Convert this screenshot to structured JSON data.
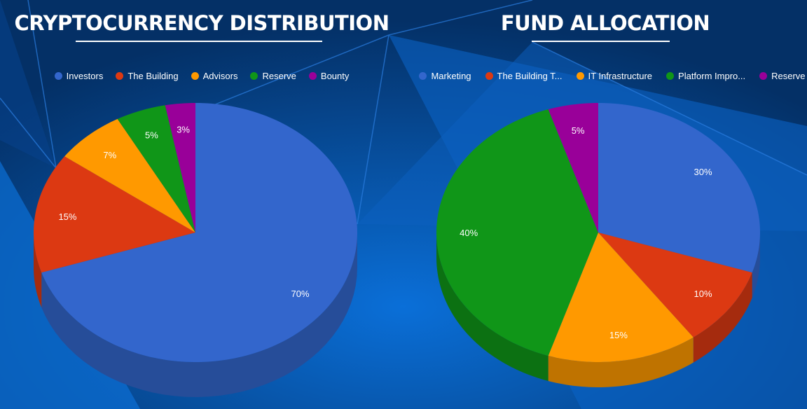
{
  "chart_data": [
    {
      "type": "pie",
      "variant": "3d",
      "title": "CRYPTOCURRENCY DISTRIBUTION",
      "legend_position": "top",
      "categories": [
        "Investors",
        "The Building",
        "Advisors",
        "Reserve",
        "Bounty"
      ],
      "values": [
        70,
        15,
        7,
        5,
        3
      ],
      "labels": [
        "70%",
        "15%",
        "7%",
        "5%",
        "3%"
      ],
      "colors": [
        "#3366cc",
        "#dc3912",
        "#ff9900",
        "#109618",
        "#990099"
      ]
    },
    {
      "type": "pie",
      "variant": "3d",
      "title": "FUND ALLOCATION",
      "legend_position": "top",
      "categories": [
        "Marketing",
        "The Building T...",
        "IT Infrastructure",
        "Platform Impro...",
        "Reserve"
      ],
      "values": [
        30,
        10,
        15,
        40,
        5
      ],
      "labels": [
        "30%",
        "10%",
        "15%",
        "40%",
        "5%"
      ],
      "colors": [
        "#3366cc",
        "#dc3912",
        "#ff9900",
        "#109618",
        "#990099"
      ]
    }
  ]
}
